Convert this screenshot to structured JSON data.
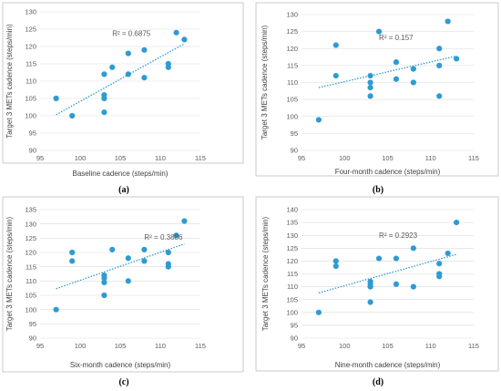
{
  "chart_data": [
    {
      "type": "scatter",
      "caption": "(a)",
      "xlabel": "Baseline cadence (steps/min)",
      "ylabel": "Target 3 METs cadence (steps/min)",
      "xlim": [
        95,
        115
      ],
      "ylim": [
        90,
        130
      ],
      "xticks": [
        95,
        100,
        105,
        110,
        115
      ],
      "yticks": [
        90,
        95,
        100,
        105,
        110,
        115,
        120,
        125,
        130
      ],
      "r2_label": "R² = 0.6875",
      "trendline": {
        "x": [
          97,
          113
        ],
        "y": [
          100.3,
          120.8
        ]
      },
      "points": [
        {
          "x": 97,
          "y": 105
        },
        {
          "x": 99,
          "y": 100
        },
        {
          "x": 103,
          "y": 112
        },
        {
          "x": 103,
          "y": 106
        },
        {
          "x": 103,
          "y": 105
        },
        {
          "x": 103,
          "y": 101
        },
        {
          "x": 104,
          "y": 114
        },
        {
          "x": 106,
          "y": 118
        },
        {
          "x": 106,
          "y": 112
        },
        {
          "x": 108,
          "y": 119
        },
        {
          "x": 108,
          "y": 111
        },
        {
          "x": 111,
          "y": 115
        },
        {
          "x": 111,
          "y": 114
        },
        {
          "x": 112,
          "y": 124
        },
        {
          "x": 113,
          "y": 122
        }
      ],
      "grid": "horizontal"
    },
    {
      "type": "scatter",
      "caption": "(b)",
      "xlabel": "Four-month cadence (steps/min)",
      "ylabel": "Target 3 METs cadence (steps/min)",
      "xlim": [
        95,
        115
      ],
      "ylim": [
        90,
        130
      ],
      "xticks": [
        95,
        100,
        105,
        110,
        115
      ],
      "yticks": [
        90,
        95,
        100,
        105,
        110,
        115,
        120,
        125,
        130
      ],
      "r2_label": "R² = 0.157",
      "trendline": {
        "x": [
          97,
          113
        ],
        "y": [
          108.5,
          117.8
        ]
      },
      "points": [
        {
          "x": 97,
          "y": 99
        },
        {
          "x": 99,
          "y": 121
        },
        {
          "x": 99,
          "y": 112
        },
        {
          "x": 103,
          "y": 112
        },
        {
          "x": 103,
          "y": 110
        },
        {
          "x": 103,
          "y": 108.5
        },
        {
          "x": 103,
          "y": 106
        },
        {
          "x": 104,
          "y": 125
        },
        {
          "x": 106,
          "y": 116
        },
        {
          "x": 106,
          "y": 111
        },
        {
          "x": 108,
          "y": 114
        },
        {
          "x": 108,
          "y": 110
        },
        {
          "x": 111,
          "y": 120
        },
        {
          "x": 111,
          "y": 115
        },
        {
          "x": 111,
          "y": 106
        },
        {
          "x": 112,
          "y": 128
        },
        {
          "x": 113,
          "y": 117
        }
      ],
      "grid": "horizontal"
    },
    {
      "type": "scatter",
      "caption": "(c)",
      "xlabel": "Six-month cadence (steps/min)",
      "ylabel": "Target 3 METs cadence (steps/min)",
      "xlim": [
        95,
        115
      ],
      "ylim": [
        90,
        135
      ],
      "xticks": [
        95,
        100,
        105,
        110,
        115
      ],
      "yticks": [
        90,
        95,
        100,
        105,
        110,
        115,
        120,
        125,
        130,
        135
      ],
      "r2_label": "R² = 0.3886",
      "trendline": {
        "x": [
          97,
          113
        ],
        "y": [
          107.3,
          123.0
        ]
      },
      "points": [
        {
          "x": 97,
          "y": 100
        },
        {
          "x": 99,
          "y": 120
        },
        {
          "x": 99,
          "y": 117
        },
        {
          "x": 103,
          "y": 112
        },
        {
          "x": 103,
          "y": 111
        },
        {
          "x": 103,
          "y": 109.5
        },
        {
          "x": 103,
          "y": 105
        },
        {
          "x": 104,
          "y": 121
        },
        {
          "x": 106,
          "y": 118
        },
        {
          "x": 106,
          "y": 110
        },
        {
          "x": 108,
          "y": 121
        },
        {
          "x": 108,
          "y": 117
        },
        {
          "x": 111,
          "y": 120
        },
        {
          "x": 111,
          "y": 116
        },
        {
          "x": 111,
          "y": 115
        },
        {
          "x": 112,
          "y": 126
        },
        {
          "x": 113,
          "y": 131
        }
      ],
      "grid": "horizontal"
    },
    {
      "type": "scatter",
      "caption": "(d)",
      "xlabel": "Nine-month cadence (steps/min)",
      "ylabel": "Target 3 METs cadence (steps/min)",
      "xlim": [
        95,
        115
      ],
      "ylim": [
        90,
        140
      ],
      "xticks": [
        95,
        100,
        105,
        110,
        115
      ],
      "yticks": [
        90,
        95,
        100,
        105,
        110,
        115,
        120,
        125,
        130,
        135,
        140
      ],
      "r2_label": "R² = 0.2923",
      "trendline": {
        "x": [
          97,
          113
        ],
        "y": [
          107.6,
          122.6
        ]
      },
      "points": [
        {
          "x": 97,
          "y": 100
        },
        {
          "x": 99,
          "y": 120
        },
        {
          "x": 99,
          "y": 118
        },
        {
          "x": 103,
          "y": 112
        },
        {
          "x": 103,
          "y": 111
        },
        {
          "x": 103,
          "y": 110
        },
        {
          "x": 103,
          "y": 104
        },
        {
          "x": 104,
          "y": 121
        },
        {
          "x": 106,
          "y": 121
        },
        {
          "x": 106,
          "y": 111
        },
        {
          "x": 108,
          "y": 125
        },
        {
          "x": 108,
          "y": 110
        },
        {
          "x": 111,
          "y": 119
        },
        {
          "x": 111,
          "y": 115
        },
        {
          "x": 111,
          "y": 114
        },
        {
          "x": 112,
          "y": 123
        },
        {
          "x": 113,
          "y": 135
        }
      ],
      "grid": "horizontal"
    }
  ]
}
